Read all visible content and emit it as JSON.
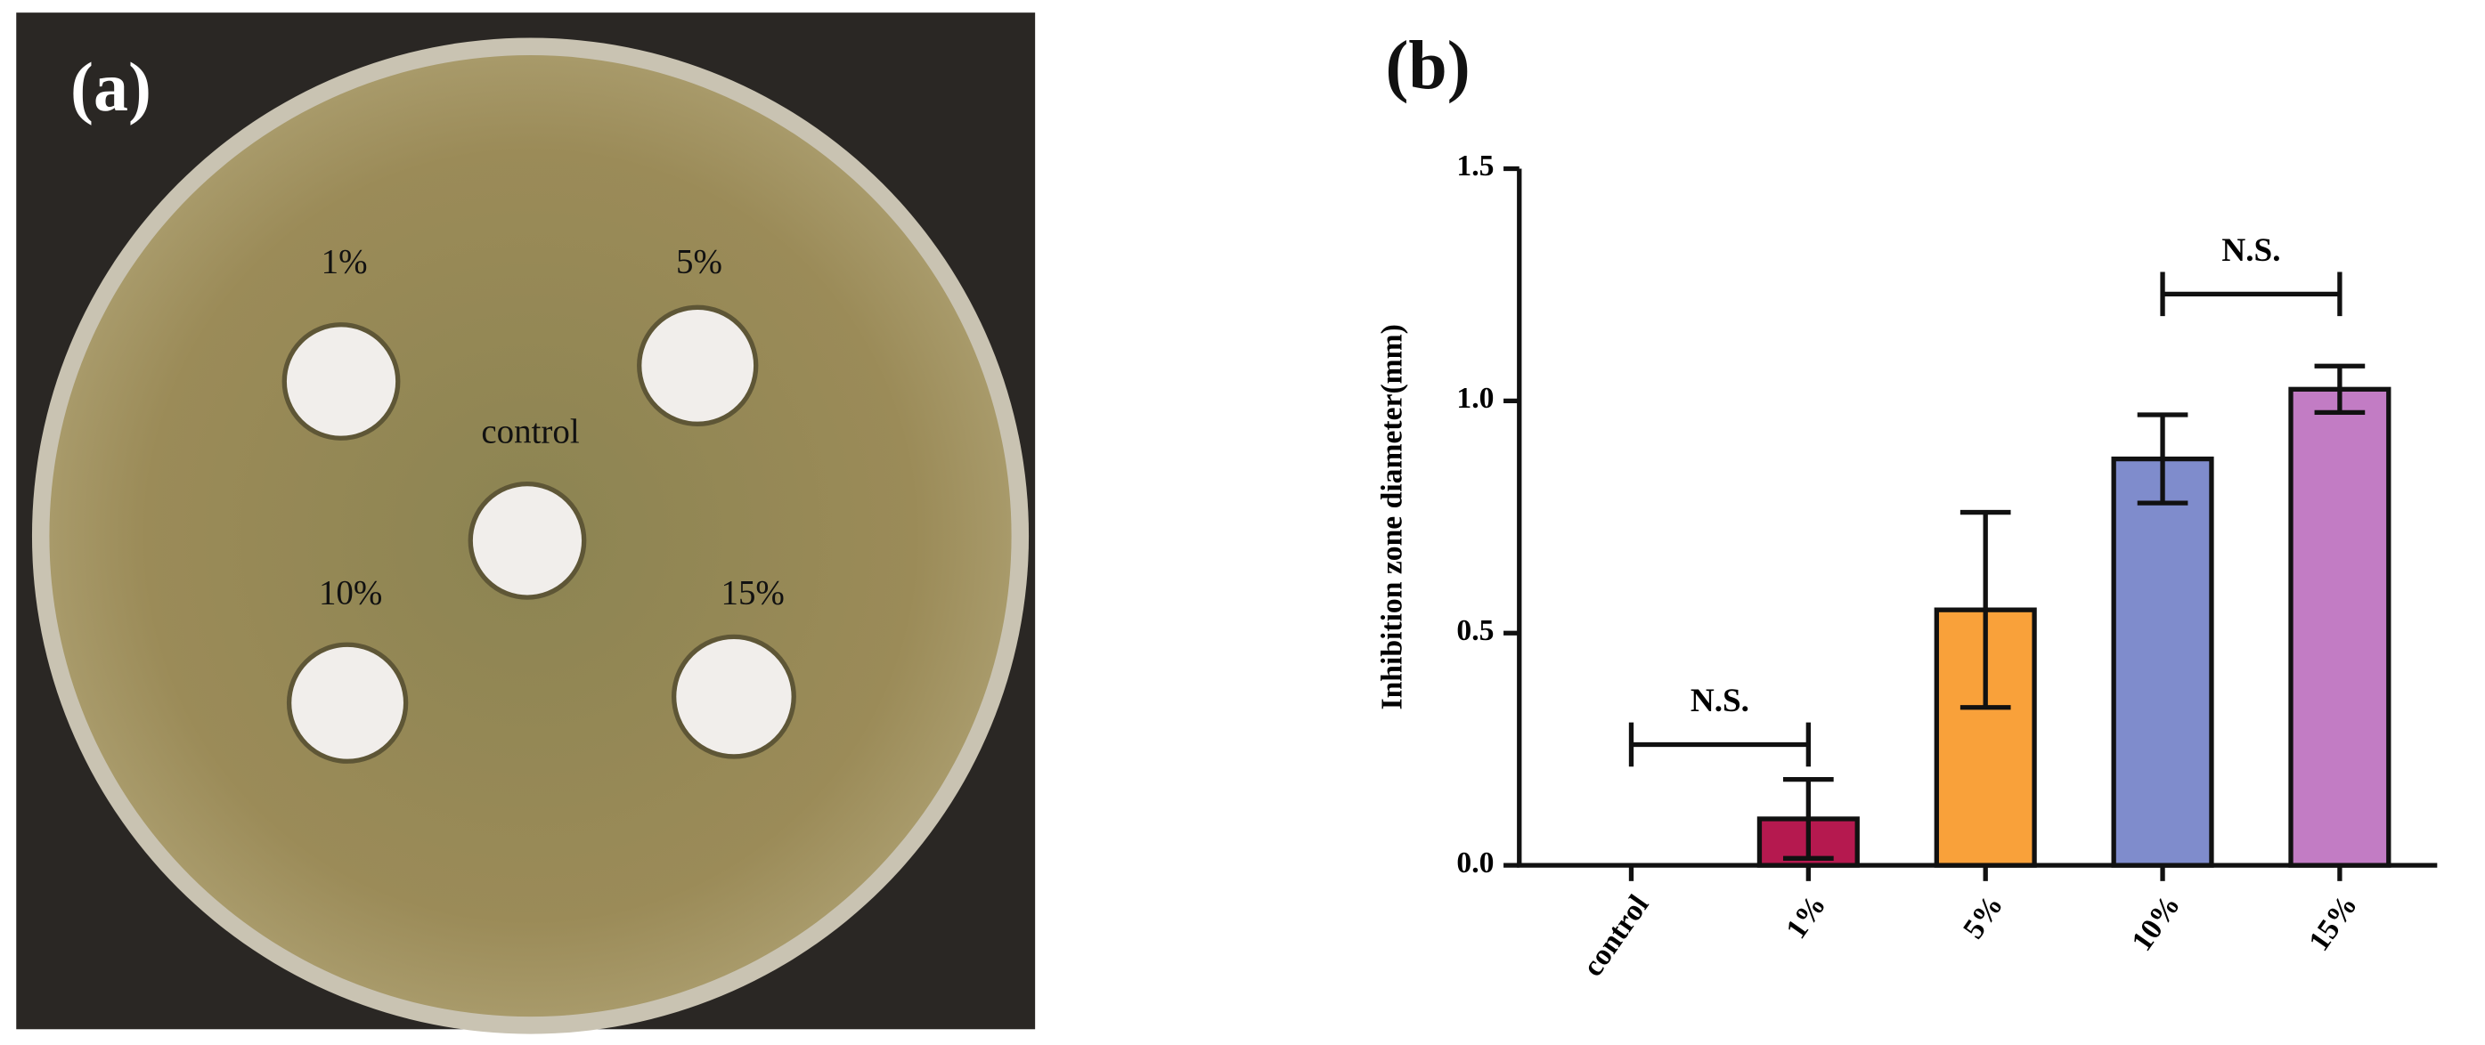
{
  "panel_a": {
    "label": "(a)",
    "disc_labels": [
      "1%",
      "5%",
      "control",
      "10%",
      "15%"
    ]
  },
  "chart_data": {
    "type": "bar",
    "panel_label": "(b)",
    "y_label": "Inhibition zone diameter(mm)",
    "categories": [
      "control",
      "1%",
      "5%",
      "10%",
      "15%"
    ],
    "values": [
      0,
      0.1,
      0.55,
      0.875,
      1.025
    ],
    "errors": [
      0,
      0.085,
      0.21,
      0.095,
      0.05
    ],
    "colors": [
      "#ffffff",
      "#b5194f",
      "#f9a13a",
      "#7f8ccc",
      "#c27cc4"
    ],
    "ylim": [
      0,
      1.5
    ],
    "yticks": [
      {
        "value": 0,
        "label": "0.0"
      },
      0.5,
      {
        "value": 1,
        "label": "1.0"
      },
      1.5
    ],
    "annotations": [
      "N.S.",
      "N.S."
    ]
  }
}
